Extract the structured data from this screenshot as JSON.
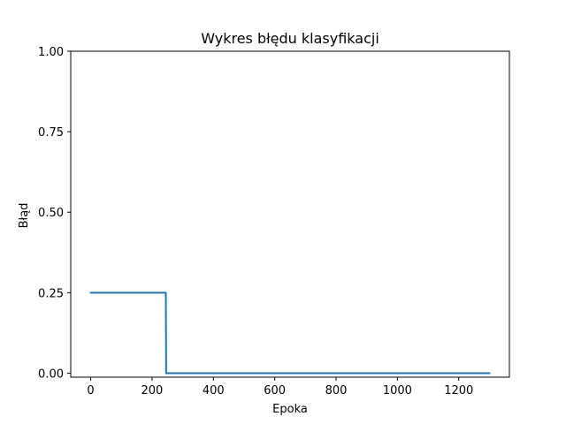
{
  "chart_data": {
    "type": "line",
    "title": "Wykres błędu klasyfikacji",
    "xlabel": "Epoka",
    "ylabel": "Błąd",
    "xlim": [
      -65,
      1365
    ],
    "ylim": [
      -0.0125,
      1.0
    ],
    "xticks": [
      0,
      200,
      400,
      600,
      800,
      1000,
      1200
    ],
    "xtick_labels": [
      "0",
      "200",
      "400",
      "600",
      "800",
      "1000",
      "1200"
    ],
    "yticks": [
      0.0,
      0.25,
      0.5,
      0.75,
      1.0
    ],
    "ytick_labels": [
      "0.00",
      "0.25",
      "0.50",
      "0.75",
      "1.00"
    ],
    "grid": false,
    "series": [
      {
        "color": "#1f77b4",
        "x": [
          0,
          245,
          246,
          1300
        ],
        "y": [
          0.25,
          0.25,
          0.0,
          0.0
        ]
      }
    ]
  }
}
